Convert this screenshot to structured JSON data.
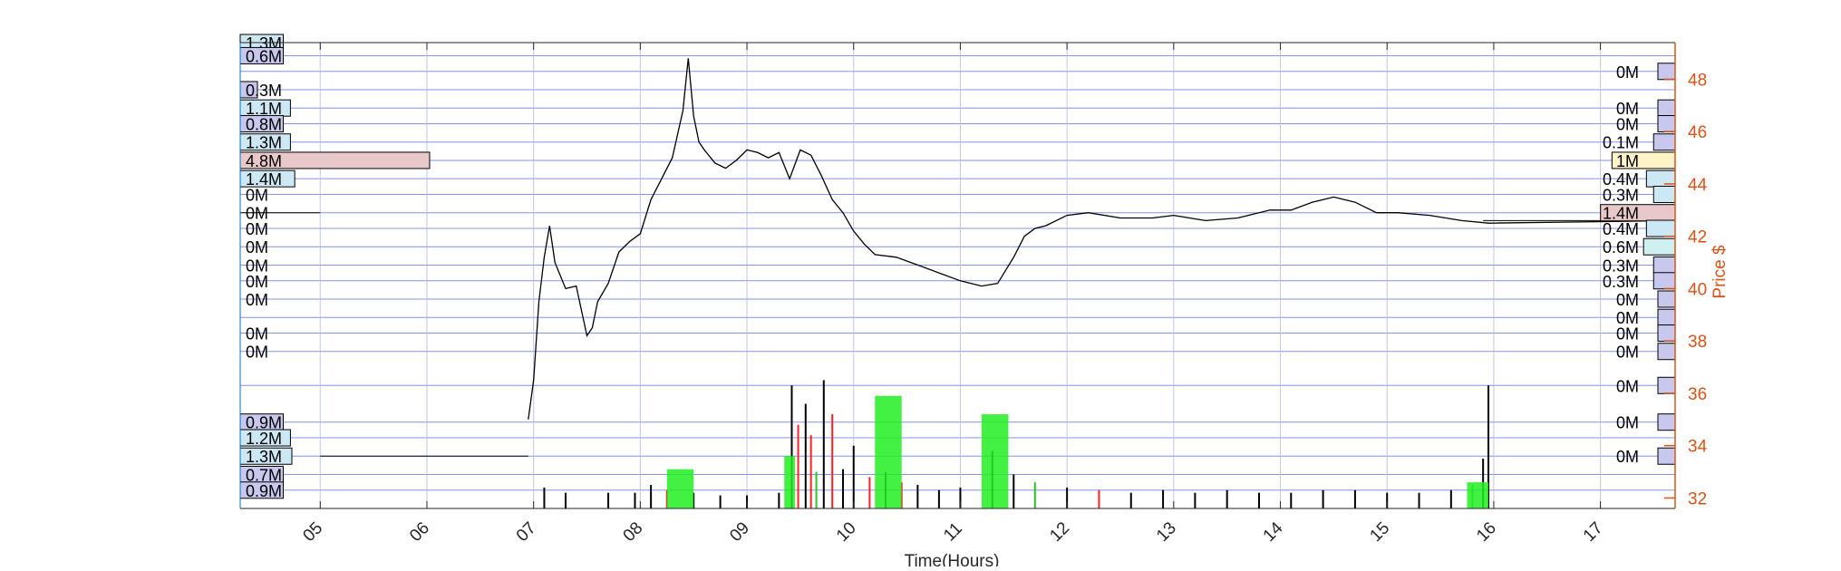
{
  "chart_data": {
    "type": "line",
    "title": "",
    "xlabel": "Time(Hours)",
    "ylabel": "Price $",
    "x_ticks": [
      "05",
      "06",
      "07",
      "08",
      "09",
      "10",
      "11",
      "12",
      "13",
      "14",
      "15",
      "16",
      "17"
    ],
    "xlim": [
      4.25,
      17.7
    ],
    "ylim": [
      31.6,
      49.4
    ],
    "y_ticks": [
      32,
      34,
      36,
      38,
      40,
      42,
      44,
      46,
      48
    ],
    "grid": true,
    "price_series": {
      "name": "",
      "x": [
        6.95,
        7.0,
        7.05,
        7.1,
        7.15,
        7.2,
        7.3,
        7.4,
        7.5,
        7.55,
        7.6,
        7.7,
        7.8,
        7.9,
        8.0,
        8.1,
        8.2,
        8.3,
        8.4,
        8.45,
        8.5,
        8.55,
        8.6,
        8.7,
        8.8,
        8.9,
        9.0,
        9.1,
        9.2,
        9.3,
        9.4,
        9.5,
        9.6,
        9.7,
        9.8,
        9.9,
        10.0,
        10.1,
        10.2,
        10.4,
        10.6,
        10.8,
        11.0,
        11.2,
        11.35,
        11.5,
        11.6,
        11.7,
        11.8,
        12.0,
        12.2,
        12.5,
        12.8,
        13.0,
        13.3,
        13.6,
        13.9,
        14.1,
        14.3,
        14.5,
        14.7,
        14.9,
        15.1,
        15.4,
        15.7,
        15.95,
        17.7
      ],
      "y": [
        35.0,
        36.5,
        39.5,
        41.2,
        42.4,
        41.0,
        40.0,
        40.1,
        38.2,
        38.5,
        39.5,
        40.2,
        41.4,
        41.8,
        42.1,
        43.4,
        44.2,
        45.0,
        46.8,
        48.8,
        46.6,
        45.6,
        45.3,
        44.8,
        44.6,
        44.9,
        45.3,
        45.2,
        45.0,
        45.2,
        44.2,
        45.3,
        45.1,
        44.3,
        43.4,
        42.9,
        42.2,
        41.7,
        41.3,
        41.2,
        40.9,
        40.6,
        40.3,
        40.1,
        40.2,
        41.2,
        42.0,
        42.3,
        42.4,
        42.8,
        42.9,
        42.7,
        42.7,
        42.8,
        42.6,
        42.7,
        43.0,
        43.0,
        43.3,
        43.5,
        43.3,
        42.9,
        42.9,
        42.8,
        42.6,
        42.5,
        42.6
      ]
    },
    "volume_bars": {
      "x": [
        7.1,
        7.3,
        7.7,
        7.95,
        8.1,
        8.25,
        8.5,
        8.75,
        9.0,
        9.3,
        9.42,
        9.48,
        9.55,
        9.6,
        9.65,
        9.72,
        9.8,
        9.9,
        10.0,
        10.15,
        10.3,
        10.45,
        10.6,
        10.8,
        11.0,
        11.3,
        11.5,
        11.7,
        12.0,
        12.3,
        12.6,
        12.9,
        13.2,
        13.5,
        13.8,
        14.1,
        14.4,
        14.7,
        15.0,
        15.3,
        15.6,
        15.8,
        15.9,
        15.95
      ],
      "y": [
        32.4,
        32.2,
        32.2,
        32.2,
        32.5,
        32.3,
        32.2,
        32.1,
        32.1,
        32.2,
        36.3,
        34.8,
        35.6,
        34.4,
        33.0,
        36.5,
        35.2,
        33.1,
        34.0,
        32.8,
        33.0,
        32.6,
        32.5,
        32.3,
        32.4,
        33.8,
        32.9,
        32.6,
        32.4,
        32.3,
        32.2,
        32.3,
        32.2,
        32.3,
        32.2,
        32.2,
        32.3,
        32.3,
        32.2,
        32.2,
        32.3,
        32.5,
        33.5,
        36.3
      ],
      "colors": [
        "#000000",
        "#000000",
        "#000000",
        "#000000",
        "#000000",
        "#ff2020",
        "#000000",
        "#000000",
        "#000000",
        "#000000",
        "#000000",
        "#ff2020",
        "#000000",
        "#ff2020",
        "#22cc22",
        "#000000",
        "#ff2020",
        "#000000",
        "#000000",
        "#ff2020",
        "#000000",
        "#ff2020",
        "#000000",
        "#000000",
        "#000000",
        "#000000",
        "#000000",
        "#22cc22",
        "#000000",
        "#ff2020",
        "#000000",
        "#000000",
        "#000000",
        "#000000",
        "#000000",
        "#000000",
        "#000000",
        "#000000",
        "#000000",
        "#000000",
        "#000000",
        "#22cc22",
        "#000000",
        "#000000"
      ]
    },
    "profile_bars": {
      "x_from": [
        8.25,
        9.35,
        10.2,
        11.2,
        15.75
      ],
      "x_to": [
        8.5,
        9.45,
        10.45,
        11.45,
        15.95
      ],
      "y": [
        33.1,
        33.6,
        35.9,
        35.2,
        32.6
      ]
    },
    "left_volume_labels": [
      {
        "text": "1.3M",
        "price": 49.4,
        "bar": 0.03,
        "fill": "#cce8f4"
      },
      {
        "text": "0.6M",
        "price": 48.9,
        "bar": 0.03,
        "fill": "#c8c8ee"
      },
      {
        "text": "0.3M",
        "price": 47.6,
        "bar": 0.012,
        "fill": "#c8c8ee"
      },
      {
        "text": "1.1M",
        "price": 46.9,
        "bar": 0.035,
        "fill": "#cce8f4"
      },
      {
        "text": "0.8M",
        "price": 46.3,
        "bar": 0.03,
        "fill": "#c8c8ee"
      },
      {
        "text": "1.3M",
        "price": 45.6,
        "bar": 0.035,
        "fill": "#cce8f4"
      },
      {
        "text": "4.8M",
        "price": 44.9,
        "bar": 0.132,
        "fill": "#e8c8c8"
      },
      {
        "text": "1.4M",
        "price": 44.2,
        "bar": 0.038,
        "fill": "#cce8f4"
      },
      {
        "text": "0M",
        "price": 43.6,
        "bar": 0,
        "fill": "#c8c8ee"
      },
      {
        "text": "0M",
        "price": 42.9,
        "bar": 0,
        "fill": "#c8c8ee"
      },
      {
        "text": "0M",
        "price": 42.3,
        "bar": 0,
        "fill": "#c8c8ee"
      },
      {
        "text": "0M",
        "price": 41.6,
        "bar": 0,
        "fill": "#c8c8ee"
      },
      {
        "text": "0M",
        "price": 40.9,
        "bar": 0,
        "fill": "#c8c8ee"
      },
      {
        "text": "0M",
        "price": 40.3,
        "bar": 0,
        "fill": "#c8c8ee"
      },
      {
        "text": "0M",
        "price": 39.6,
        "bar": 0,
        "fill": "#c8c8ee"
      },
      {
        "text": "0M",
        "price": 38.3,
        "bar": 0,
        "fill": "#c8c8ee"
      },
      {
        "text": "0M",
        "price": 37.6,
        "bar": 0,
        "fill": "#c8c8ee"
      },
      {
        "text": "0.9M",
        "price": 34.9,
        "bar": 0.03,
        "fill": "#c8c8ee"
      },
      {
        "text": "1.2M",
        "price": 34.3,
        "bar": 0.035,
        "fill": "#cce8f4"
      },
      {
        "text": "1.3M",
        "price": 33.6,
        "bar": 0.036,
        "fill": "#cce8f4"
      },
      {
        "text": "0.7M",
        "price": 32.9,
        "bar": 0.03,
        "fill": "#c8c8ee"
      },
      {
        "text": "0.9M",
        "price": 32.3,
        "bar": 0.03,
        "fill": "#c8c8ee"
      }
    ],
    "right_volume_labels": [
      {
        "text": "0M",
        "price": 48.3,
        "bar": 0.012,
        "fill": "#c8c8ee"
      },
      {
        "text": "0M",
        "price": 46.9,
        "bar": 0.012,
        "fill": "#c8c8ee"
      },
      {
        "text": "0M",
        "price": 46.3,
        "bar": 0.012,
        "fill": "#c8c8ee"
      },
      {
        "text": "0.1M",
        "price": 45.6,
        "bar": 0.015,
        "fill": "#c8c8ee"
      },
      {
        "text": "1M",
        "price": 44.9,
        "bar": 0.044,
        "fill": "#fff4c8"
      },
      {
        "text": "0.4M",
        "price": 44.2,
        "bar": 0.02,
        "fill": "#cce8f4"
      },
      {
        "text": "0.3M",
        "price": 43.6,
        "bar": 0.015,
        "fill": "#cce8f4"
      },
      {
        "text": "1.4M",
        "price": 42.9,
        "bar": 0.052,
        "fill": "#e8c8c8"
      },
      {
        "text": "0.4M",
        "price": 42.3,
        "bar": 0.02,
        "fill": "#cce8f4"
      },
      {
        "text": "0.6M",
        "price": 41.6,
        "bar": 0.022,
        "fill": "#d0f0f0"
      },
      {
        "text": "0.3M",
        "price": 40.9,
        "bar": 0.015,
        "fill": "#c8c8ee"
      },
      {
        "text": "0.3M",
        "price": 40.3,
        "bar": 0.015,
        "fill": "#c8c8ee"
      },
      {
        "text": "0M",
        "price": 39.6,
        "bar": 0.012,
        "fill": "#c8c8ee"
      },
      {
        "text": "0M",
        "price": 38.9,
        "bar": 0.012,
        "fill": "#c8c8ee"
      },
      {
        "text": "0M",
        "price": 38.3,
        "bar": 0.012,
        "fill": "#c8c8ee"
      },
      {
        "text": "0M",
        "price": 37.6,
        "bar": 0.012,
        "fill": "#c8c8ee"
      },
      {
        "text": "0M",
        "price": 36.3,
        "bar": 0.012,
        "fill": "#c8c8ee"
      },
      {
        "text": "0M",
        "price": 34.9,
        "bar": 0.012,
        "fill": "#c8c8ee"
      },
      {
        "text": "0M",
        "price": 33.6,
        "bar": 0.012,
        "fill": "#c8c8ee"
      }
    ],
    "reference_lines": [
      {
        "from": 4.25,
        "to": 5.0,
        "price": 42.9
      },
      {
        "from": 5.0,
        "to": 6.95,
        "price": 33.6
      },
      {
        "from": 15.9,
        "to": 17.7,
        "price": 42.6
      }
    ],
    "colors": {
      "grid": "#5a6fe8",
      "axis_right": "#d95319",
      "price_line": "#000000",
      "volume_up": "#22ee22",
      "volume_down": "#ff2020"
    }
  }
}
